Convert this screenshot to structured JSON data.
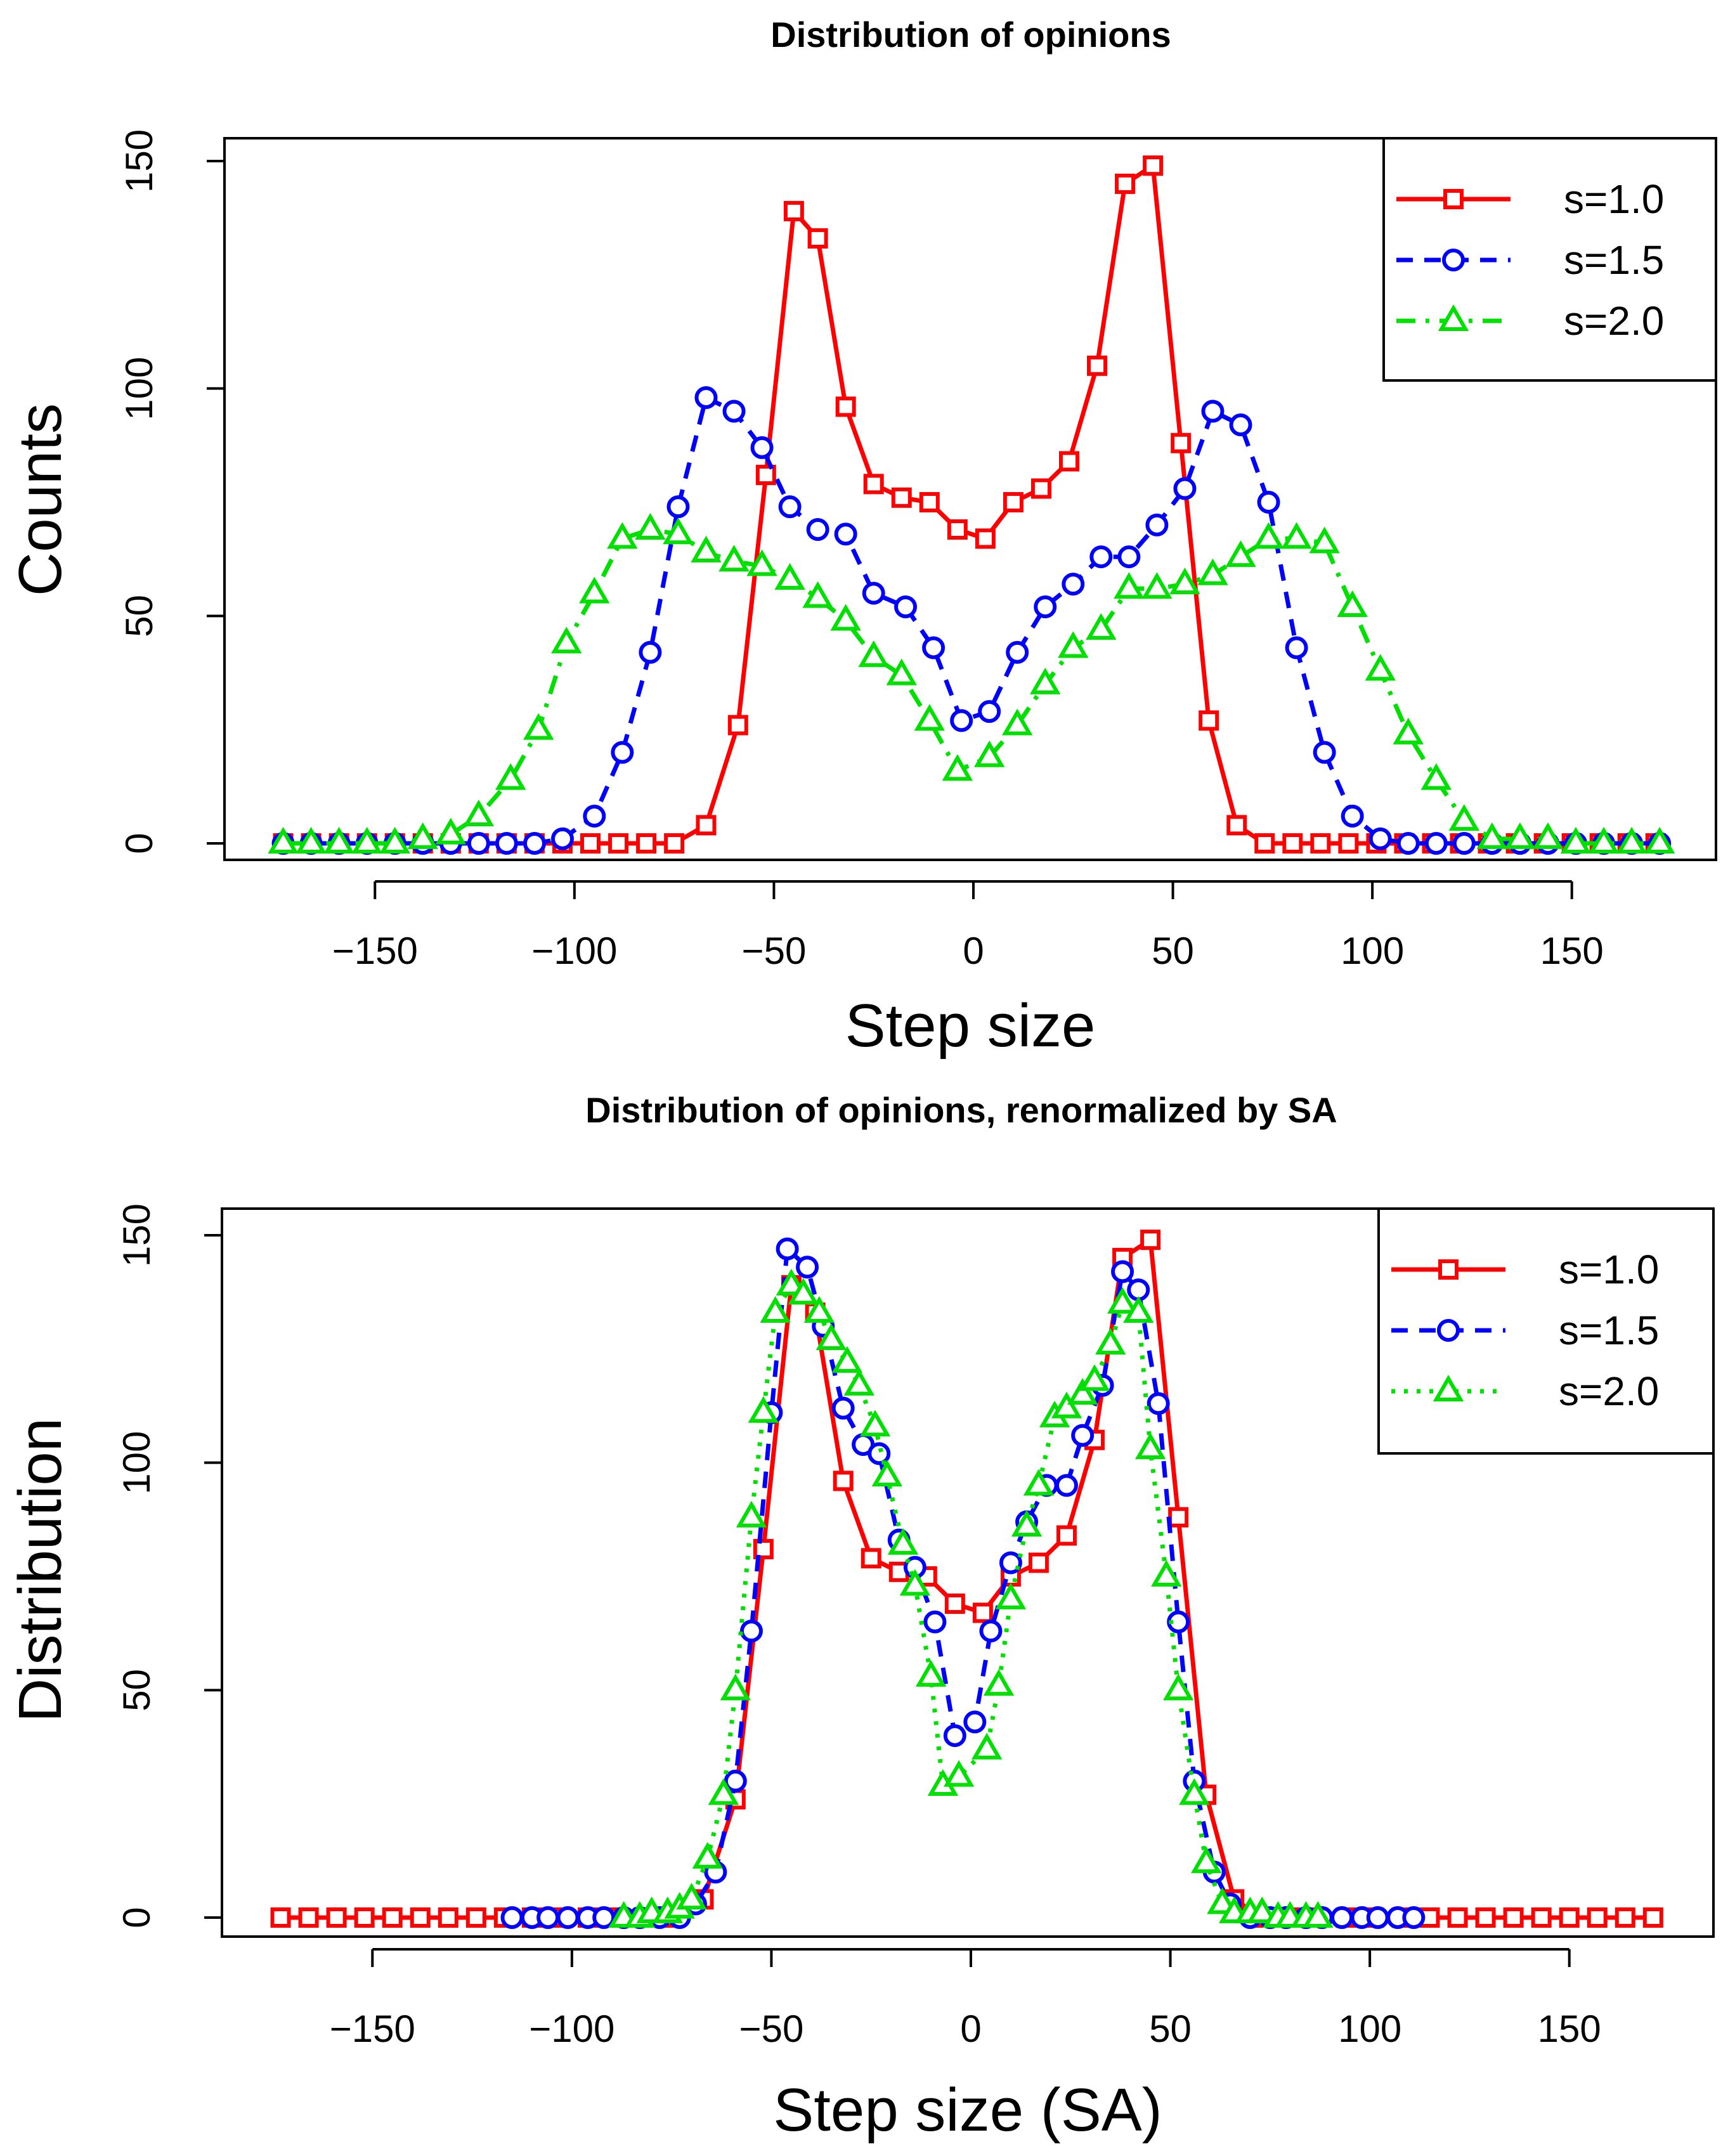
{
  "chart_data": [
    {
      "type": "line",
      "title": "Distribution of opinions",
      "xlabel": "Step size",
      "ylabel": "Counts",
      "xlim": [
        -175,
        175
      ],
      "ylim": [
        0,
        150
      ],
      "xticks": [
        -150,
        -100,
        -50,
        0,
        50,
        100,
        150
      ],
      "yticks": [
        0,
        50,
        100,
        150
      ],
      "x_tick_labels": [
        "−150",
        "−100",
        "−50",
        "0",
        "50",
        "100",
        "150"
      ],
      "y_tick_labels": [
        "0",
        "50",
        "100",
        "150"
      ],
      "legend_position": "top-right",
      "grid": false,
      "series": [
        {
          "name": "s=1.0",
          "color": "#ff0000",
          "marker": "square",
          "line": "solid",
          "x": [
            -173,
            -166,
            -159,
            -152,
            -145,
            -138,
            -131,
            -124,
            -117,
            -110,
            -103,
            -96,
            -89,
            -82,
            -75,
            -67,
            -59,
            -52,
            -45,
            -39,
            -32,
            -25,
            -18,
            -11,
            -4,
            3,
            10,
            17,
            24,
            31,
            38,
            45,
            52,
            59,
            66,
            73,
            80,
            87,
            94,
            101,
            108,
            115,
            122,
            129,
            136,
            143,
            150,
            157,
            164,
            171
          ],
          "y": [
            0,
            0,
            0,
            0,
            0,
            0,
            0,
            0,
            0,
            0,
            0,
            0,
            0,
            0,
            0,
            4,
            26,
            81,
            139,
            133,
            96,
            79,
            76,
            75,
            69,
            67,
            75,
            78,
            84,
            105,
            145,
            149,
            88,
            27,
            4,
            0,
            0,
            0,
            0,
            0,
            0,
            0,
            0,
            0,
            0,
            0,
            0,
            0,
            0,
            0
          ]
        },
        {
          "name": "s=1.5",
          "color": "#0000ff",
          "marker": "circle",
          "line": "dashed",
          "x": [
            -173,
            -166,
            -159,
            -152,
            -145,
            -138,
            -131,
            -124,
            -117,
            -110,
            -103,
            -95,
            -88,
            -81,
            -74,
            -67,
            -60,
            -53,
            -46,
            -39,
            -32,
            -25,
            -17,
            -10,
            -3,
            4,
            11,
            18,
            25,
            32,
            39,
            46,
            53,
            60,
            67,
            74,
            81,
            88,
            95,
            102,
            109,
            116,
            123,
            130,
            137,
            144,
            151,
            158,
            165,
            172
          ],
          "y": [
            0,
            0,
            0,
            0,
            0,
            0,
            0,
            0,
            0,
            0,
            1,
            6,
            20,
            42,
            74,
            98,
            95,
            87,
            74,
            69,
            68,
            55,
            52,
            43,
            27,
            29,
            42,
            52,
            57,
            63,
            63,
            70,
            78,
            95,
            92,
            75,
            43,
            20,
            6,
            1,
            0,
            0,
            0,
            0,
            0,
            0,
            0,
            0,
            0,
            0
          ]
        },
        {
          "name": "s=2.0",
          "color": "#00e000",
          "marker": "triangle",
          "line": "dashdot",
          "x": [
            -173,
            -166,
            -159,
            -152,
            -145,
            -138,
            -131,
            -124,
            -116,
            -109,
            -102,
            -95,
            -88,
            -81,
            -74,
            -67,
            -60,
            -53,
            -46,
            -39,
            -32,
            -25,
            -18,
            -11,
            -4,
            4,
            11,
            18,
            25,
            32,
            39,
            46,
            53,
            60,
            67,
            74,
            81,
            88,
            95,
            102,
            109,
            116,
            123,
            130,
            137,
            144,
            151,
            158,
            165,
            172
          ],
          "y": [
            0,
            0,
            0,
            0,
            0,
            1,
            2,
            6,
            14,
            25,
            44,
            55,
            67,
            69,
            68,
            64,
            62,
            61,
            58,
            54,
            49,
            41,
            37,
            27,
            16,
            19,
            26,
            35,
            43,
            47,
            56,
            56,
            57,
            59,
            63,
            67,
            67,
            66,
            52,
            38,
            24,
            14,
            5,
            1,
            1,
            1,
            0,
            0,
            0,
            0
          ]
        }
      ]
    },
    {
      "type": "line",
      "title": "Distribution of opinions, renormalized by SA",
      "xlabel": "Step size (SA)",
      "ylabel": "Distribution",
      "xlim": [
        -175,
        175
      ],
      "ylim": [
        0,
        150
      ],
      "xticks": [
        -150,
        -100,
        -50,
        0,
        50,
        100,
        150
      ],
      "yticks": [
        0,
        50,
        100,
        150
      ],
      "x_tick_labels": [
        "−150",
        "−100",
        "−50",
        "0",
        "50",
        "100",
        "150"
      ],
      "y_tick_labels": [
        "0",
        "50",
        "100",
        "150"
      ],
      "legend_position": "top-right",
      "grid": false,
      "series": [
        {
          "name": "s=1.0",
          "color": "#ff0000",
          "marker": "square",
          "line": "solid",
          "x": [
            -173,
            -166,
            -159,
            -152,
            -145,
            -138,
            -131,
            -124,
            -117,
            -110,
            -103,
            -96,
            -89,
            -82,
            -75,
            -67,
            -59,
            -52,
            -45,
            -39,
            -32,
            -25,
            -18,
            -11,
            -4,
            3,
            10,
            17,
            24,
            31,
            38,
            45,
            52,
            59,
            66,
            73,
            80,
            87,
            94,
            101,
            108,
            115,
            122,
            129,
            136,
            143,
            150,
            157,
            164,
            171
          ],
          "y": [
            0,
            0,
            0,
            0,
            0,
            0,
            0,
            0,
            0,
            0,
            0,
            0,
            0,
            0,
            0,
            4,
            26,
            81,
            139,
            133,
            96,
            79,
            76,
            75,
            69,
            67,
            75,
            78,
            84,
            105,
            145,
            149,
            88,
            27,
            4,
            0,
            0,
            0,
            0,
            0,
            0,
            0,
            0,
            0,
            0,
            0,
            0,
            0,
            0,
            0
          ]
        },
        {
          "name": "s=1.5",
          "color": "#0000ff",
          "marker": "circle",
          "line": "dashed",
          "x": [
            -115,
            -110,
            -106,
            -101,
            -96,
            -92,
            -87,
            -83,
            -78,
            -73,
            -69,
            -64,
            -59,
            -55,
            -50,
            -46,
            -41,
            -37,
            -32,
            -27,
            -23,
            -18,
            -14,
            -9,
            -4,
            1,
            5,
            10,
            14,
            19,
            24,
            28,
            33,
            38,
            42,
            47,
            52,
            56,
            61,
            65,
            70,
            75,
            79,
            84,
            88,
            93,
            98,
            102,
            107,
            111
          ],
          "y": [
            0,
            0,
            0,
            0,
            0,
            0,
            0,
            0,
            0,
            0,
            3,
            10,
            30,
            63,
            111,
            147,
            143,
            130,
            112,
            104,
            102,
            83,
            77,
            65,
            40,
            43,
            63,
            78,
            87,
            95,
            95,
            106,
            117,
            142,
            138,
            113,
            65,
            30,
            10,
            3,
            0,
            0,
            0,
            0,
            0,
            0,
            0,
            0,
            0,
            0
          ]
        },
        {
          "name": "s=2.0",
          "color": "#00e000",
          "marker": "triangle",
          "line": "dotted",
          "x": [
            -87,
            -83,
            -80,
            -76,
            -73,
            -70,
            -66,
            -62,
            -59,
            -55,
            -52,
            -49,
            -45,
            -42,
            -38,
            -35,
            -31,
            -28,
            -24,
            -21,
            -17,
            -14,
            -10,
            -7,
            -3,
            4,
            7,
            10,
            14,
            17,
            21,
            24,
            28,
            31,
            35,
            38,
            42,
            45,
            49,
            52,
            56,
            59,
            63,
            66,
            70,
            73,
            77,
            80,
            84,
            87
          ],
          "y": [
            0,
            0,
            1,
            1,
            2,
            4,
            13,
            27,
            50,
            88,
            111,
            133,
            139,
            137,
            133,
            127,
            122,
            117,
            108,
            97,
            82,
            73,
            53,
            29,
            31,
            37,
            51,
            70,
            86,
            95,
            110,
            112,
            115,
            118,
            126,
            135,
            133,
            103,
            75,
            50,
            27,
            12,
            3,
            1,
            1,
            1,
            0,
            0,
            0,
            0
          ]
        }
      ]
    }
  ]
}
